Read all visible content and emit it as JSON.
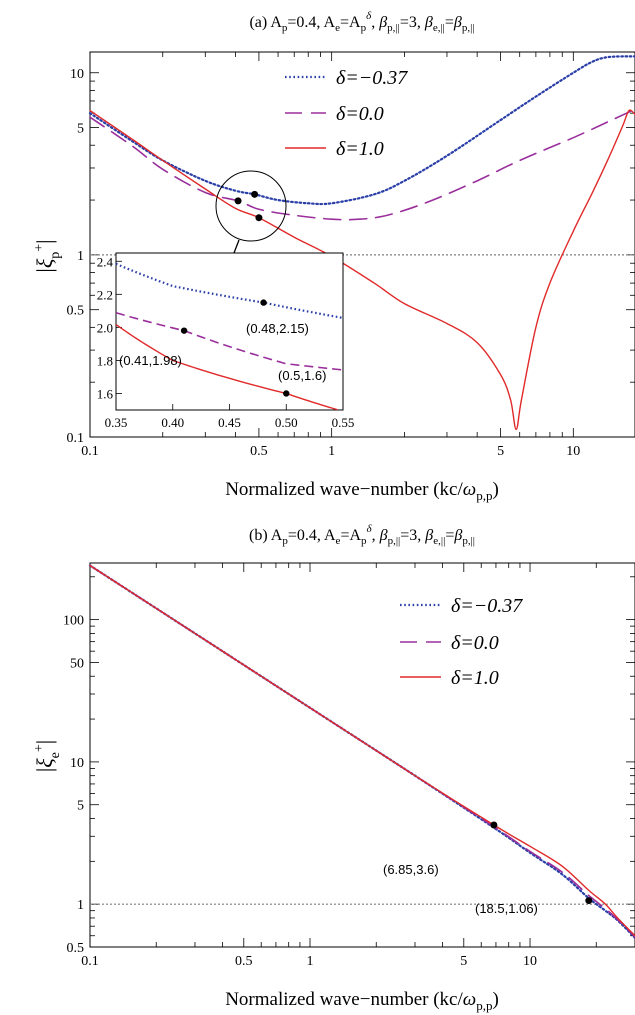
{
  "colors": {
    "series_dotted": "#2b3fa8",
    "series_dashed": "#9a2f9c",
    "series_solid": "#e02a2a",
    "reference_line": "#7f7f7f",
    "axis": "#000000"
  },
  "chart_data": [
    {
      "panel": "a",
      "type": "line",
      "title": "(a) A_p=0.4, A_e=A_p^δ, β_p,||=3, β_e,||=β_p,||",
      "xlabel": "Normalized wave−number  (kc/ω_p,p)",
      "ylabel": "|ξ_p^+|",
      "x_scale": "log",
      "y_scale": "log",
      "xlim": [
        0.1,
        18
      ],
      "ylim": [
        0.1,
        13
      ],
      "x_ticks": [
        "0.1",
        "0.5",
        "1",
        "5",
        "10"
      ],
      "x_tick_values": [
        0.1,
        0.5,
        1,
        5,
        10
      ],
      "y_ticks": [
        "0.1",
        "0.5",
        "1",
        "5",
        "10"
      ],
      "y_tick_values": [
        0.1,
        0.5,
        1,
        5,
        10
      ],
      "legend_position": "top-right",
      "reference_line_y": 1,
      "series": [
        {
          "name": "δ=−0.37",
          "style": "dotted",
          "x": [
            0.1,
            0.15,
            0.2,
            0.3,
            0.4,
            0.48,
            0.6,
            0.8,
            1.0,
            1.5,
            2.0,
            3.0,
            5.0,
            7.0,
            10.0,
            12.0,
            14.0,
            18.0
          ],
          "y": [
            6.0,
            4.2,
            3.3,
            2.55,
            2.25,
            2.15,
            2.0,
            1.92,
            1.92,
            2.15,
            2.55,
            3.5,
            5.5,
            7.4,
            10.0,
            11.5,
            12.2,
            12.3
          ]
        },
        {
          "name": "δ=0.0",
          "style": "dashed",
          "x": [
            0.1,
            0.15,
            0.2,
            0.3,
            0.41,
            0.5,
            0.7,
            1.0,
            1.3,
            1.7,
            2.5,
            4.0,
            6.0,
            10.0,
            14.0,
            18.0
          ],
          "y": [
            5.7,
            3.95,
            2.95,
            2.2,
            1.98,
            1.78,
            1.65,
            1.57,
            1.57,
            1.65,
            1.95,
            2.55,
            3.3,
            4.4,
            5.4,
            6.3
          ]
        },
        {
          "name": "δ=1.0",
          "style": "solid",
          "x": [
            0.1,
            0.15,
            0.2,
            0.3,
            0.4,
            0.5,
            0.7,
            1.0,
            1.5,
            2.0,
            3.0,
            4.0,
            5.0,
            5.5,
            5.8,
            6.1,
            7.0,
            8.0,
            10.0,
            12.0,
            14.0,
            16.0,
            17.0,
            18.0
          ],
          "y": [
            6.2,
            4.3,
            3.3,
            2.3,
            1.8,
            1.6,
            1.25,
            0.98,
            0.7,
            0.54,
            0.42,
            0.33,
            0.22,
            0.16,
            0.11,
            0.16,
            0.4,
            0.7,
            1.35,
            2.2,
            3.4,
            5.1,
            6.2,
            5.9
          ]
        }
      ],
      "markers": [
        {
          "x": 0.41,
          "y": 1.98
        },
        {
          "x": 0.48,
          "y": 2.15
        },
        {
          "x": 0.5,
          "y": 1.6
        }
      ],
      "inset": {
        "xlim": [
          0.35,
          0.55
        ],
        "ylim": [
          1.5,
          2.45
        ],
        "x_ticks": [
          "0.35",
          "0.40",
          "0.45",
          "0.50",
          "0.55"
        ],
        "x_tick_values": [
          0.35,
          0.4,
          0.45,
          0.5,
          0.55
        ],
        "y_ticks": [
          "1.6",
          "1.8",
          "2.0",
          "2.2",
          "2.4"
        ],
        "y_tick_values": [
          1.6,
          1.8,
          2.0,
          2.2,
          2.4
        ],
        "annotations": [
          {
            "text": "(0.48,2.15)",
            "x": 0.48,
            "y": 2.15
          },
          {
            "text": "(0.41,1.98)",
            "x": 0.41,
            "y": 1.98
          },
          {
            "text": "(0.5,1.6)",
            "x": 0.5,
            "y": 1.6
          }
        ]
      }
    },
    {
      "panel": "b",
      "type": "line",
      "title": "(b) A_p=0.4, A_e=A_p^δ, β_p,||=3, β_e,||=β_p,||",
      "xlabel": "Normalized wave−number  (kc/ω_p,p)",
      "ylabel": "|ξ_e^+|",
      "x_scale": "log",
      "y_scale": "log",
      "xlim": [
        0.1,
        30
      ],
      "ylim": [
        0.5,
        250
      ],
      "x_ticks": [
        "0.1",
        "0.5",
        "1",
        "5",
        "10"
      ],
      "x_tick_values": [
        0.1,
        0.5,
        1,
        5,
        10
      ],
      "y_ticks": [
        "0.5",
        "1",
        "5",
        "10",
        "50",
        "100"
      ],
      "y_tick_values": [
        0.5,
        1,
        5,
        10,
        50,
        100
      ],
      "legend_position": "top-right",
      "reference_line_y": 1,
      "series": [
        {
          "name": "δ=−0.37",
          "style": "dotted",
          "x": [
            0.1,
            0.3,
            1.0,
            3.0,
            6.85,
            10.0,
            14.0,
            18.5,
            22.0,
            25.0,
            30.0
          ],
          "y": [
            240,
            80,
            24,
            8.0,
            3.45,
            2.3,
            1.62,
            1.1,
            0.9,
            0.77,
            0.58
          ]
        },
        {
          "name": "δ=0.0",
          "style": "dashed",
          "x": [
            0.1,
            0.3,
            1.0,
            3.0,
            6.85,
            10.0,
            14.0,
            18.5,
            22.0,
            25.0,
            30.0
          ],
          "y": [
            240,
            80,
            24,
            8.0,
            3.5,
            2.35,
            1.68,
            1.15,
            0.93,
            0.78,
            0.59
          ]
        },
        {
          "name": "δ=1.0",
          "style": "solid",
          "x": [
            0.1,
            0.3,
            1.0,
            3.0,
            6.85,
            10.0,
            14.0,
            18.5,
            22.0,
            25.0,
            30.0
          ],
          "y": [
            240,
            80,
            24,
            8.0,
            3.6,
            2.55,
            1.85,
            1.25,
            1.0,
            0.8,
            0.6
          ]
        }
      ],
      "markers": [
        {
          "x": 6.85,
          "y": 3.6
        },
        {
          "x": 18.5,
          "y": 1.06
        }
      ],
      "annotations": [
        {
          "text": "(6.85,3.6)",
          "x": 6.85,
          "y": 3.6
        },
        {
          "text": "(18.5,1.06)",
          "x": 18.5,
          "y": 1.06
        }
      ]
    }
  ]
}
